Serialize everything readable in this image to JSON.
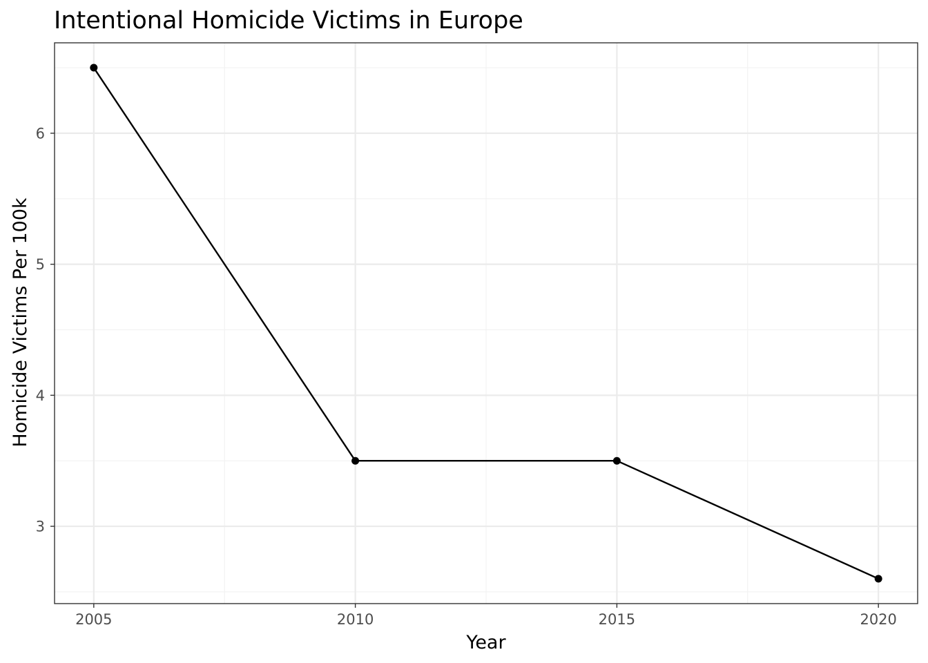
{
  "chart_data": {
    "type": "line",
    "title": "Intentional Homicide Victims in Europe",
    "xlabel": "Year",
    "ylabel": "Homicide Victims Per 100k",
    "x": [
      2005,
      2010,
      2015,
      2020
    ],
    "series": [
      {
        "values": [
          6.5,
          3.5,
          3.5,
          2.6
        ]
      }
    ],
    "xlim": [
      2004.25,
      2020.75
    ],
    "ylim": [
      2.41,
      6.69
    ],
    "x_ticks": [
      2005,
      2010,
      2015,
      2020
    ],
    "x_tick_labels": [
      "2005",
      "2010",
      "2015",
      "2020"
    ],
    "x_minor_ticks": [
      2007.5,
      2012.5,
      2017.5
    ],
    "y_ticks": [
      3,
      4,
      5,
      6
    ],
    "y_tick_labels": [
      "3",
      "4",
      "5",
      "6"
    ],
    "y_minor_ticks": [
      2.5,
      3.5,
      4.5,
      5.5,
      6.5
    ],
    "grid": true,
    "legend": "none",
    "colors": {
      "line": "#000000",
      "points": "#000000",
      "grid_major": "#ebebeb",
      "grid_minor": "#f2f2f2",
      "panel_border": "#333333",
      "tick_label": "#4d4d4d",
      "background": "#ffffff"
    }
  }
}
